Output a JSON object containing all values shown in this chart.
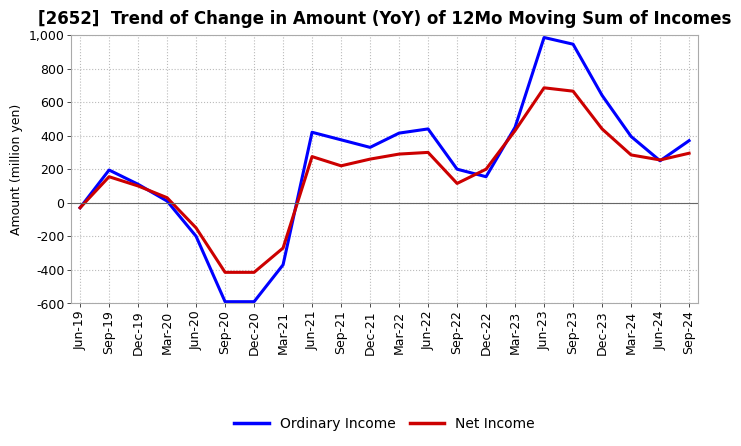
{
  "title": "[2652]  Trend of Change in Amount (YoY) of 12Mo Moving Sum of Incomes",
  "ylabel": "Amount (million yen)",
  "ylim": [
    -600,
    1000
  ],
  "yticks": [
    -600,
    -400,
    -200,
    0,
    200,
    400,
    600,
    800,
    1000
  ],
  "background_color": "#ffffff",
  "grid_color": "#bbbbbb",
  "x_labels": [
    "Jun-19",
    "Sep-19",
    "Dec-19",
    "Mar-20",
    "Jun-20",
    "Sep-20",
    "Dec-20",
    "Mar-21",
    "Jun-21",
    "Sep-21",
    "Dec-21",
    "Mar-22",
    "Jun-22",
    "Sep-22",
    "Dec-22",
    "Mar-23",
    "Jun-23",
    "Sep-23",
    "Dec-23",
    "Mar-24",
    "Jun-24",
    "Sep-24"
  ],
  "ordinary_income": [
    -30,
    195,
    110,
    10,
    -200,
    -590,
    -590,
    -370,
    420,
    375,
    330,
    415,
    440,
    200,
    155,
    450,
    985,
    945,
    640,
    395,
    250,
    370
  ],
  "net_income": [
    -30,
    155,
    100,
    30,
    -150,
    -415,
    -415,
    -270,
    275,
    220,
    260,
    290,
    300,
    115,
    200,
    430,
    685,
    665,
    440,
    285,
    255,
    295
  ],
  "ordinary_color": "#0000ff",
  "net_color": "#cc0000",
  "line_width": 2.2,
  "legend_labels": [
    "Ordinary Income",
    "Net Income"
  ],
  "title_fontsize": 12,
  "axis_fontsize": 9,
  "tick_fontsize": 9,
  "legend_fontsize": 10
}
